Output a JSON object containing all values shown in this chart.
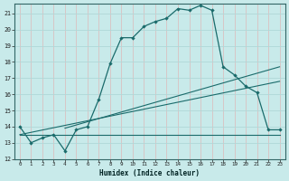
{
  "xlabel": "Humidex (Indice chaleur)",
  "bg_color": "#c8eaea",
  "line_color": "#1a6b6b",
  "xlim": [
    -0.5,
    23.5
  ],
  "ylim": [
    12,
    21.6
  ],
  "yticks": [
    12,
    13,
    14,
    15,
    16,
    17,
    18,
    19,
    20,
    21
  ],
  "xticks": [
    0,
    1,
    2,
    3,
    4,
    5,
    6,
    7,
    8,
    9,
    10,
    11,
    12,
    13,
    14,
    15,
    16,
    17,
    18,
    19,
    20,
    21,
    22,
    23
  ],
  "line1_x": [
    0,
    1,
    2,
    3,
    4,
    5,
    6,
    7,
    8,
    9,
    10,
    11,
    12,
    13,
    14,
    15,
    16,
    17,
    18,
    19,
    20,
    21,
    22,
    23
  ],
  "line1_y": [
    14,
    13,
    13.3,
    13.5,
    12.5,
    13.8,
    14,
    15.7,
    17.9,
    19.5,
    19.5,
    20.2,
    20.5,
    20.7,
    21.3,
    21.2,
    21.5,
    21.2,
    17.7,
    17.2,
    16.5,
    16.1,
    13.8,
    13.8
  ],
  "line2_x": [
    0,
    23
  ],
  "line2_y": [
    13.5,
    13.5
  ],
  "line3_x": [
    0,
    23
  ],
  "line3_y": [
    13.5,
    16.8
  ],
  "line4_x": [
    4,
    23
  ],
  "line4_y": [
    13.9,
    17.7
  ],
  "hgrid_color": "#b0d8d8",
  "vgrid_color": "#ddb8b8",
  "vgrid_major_color": "#c4a0a0"
}
